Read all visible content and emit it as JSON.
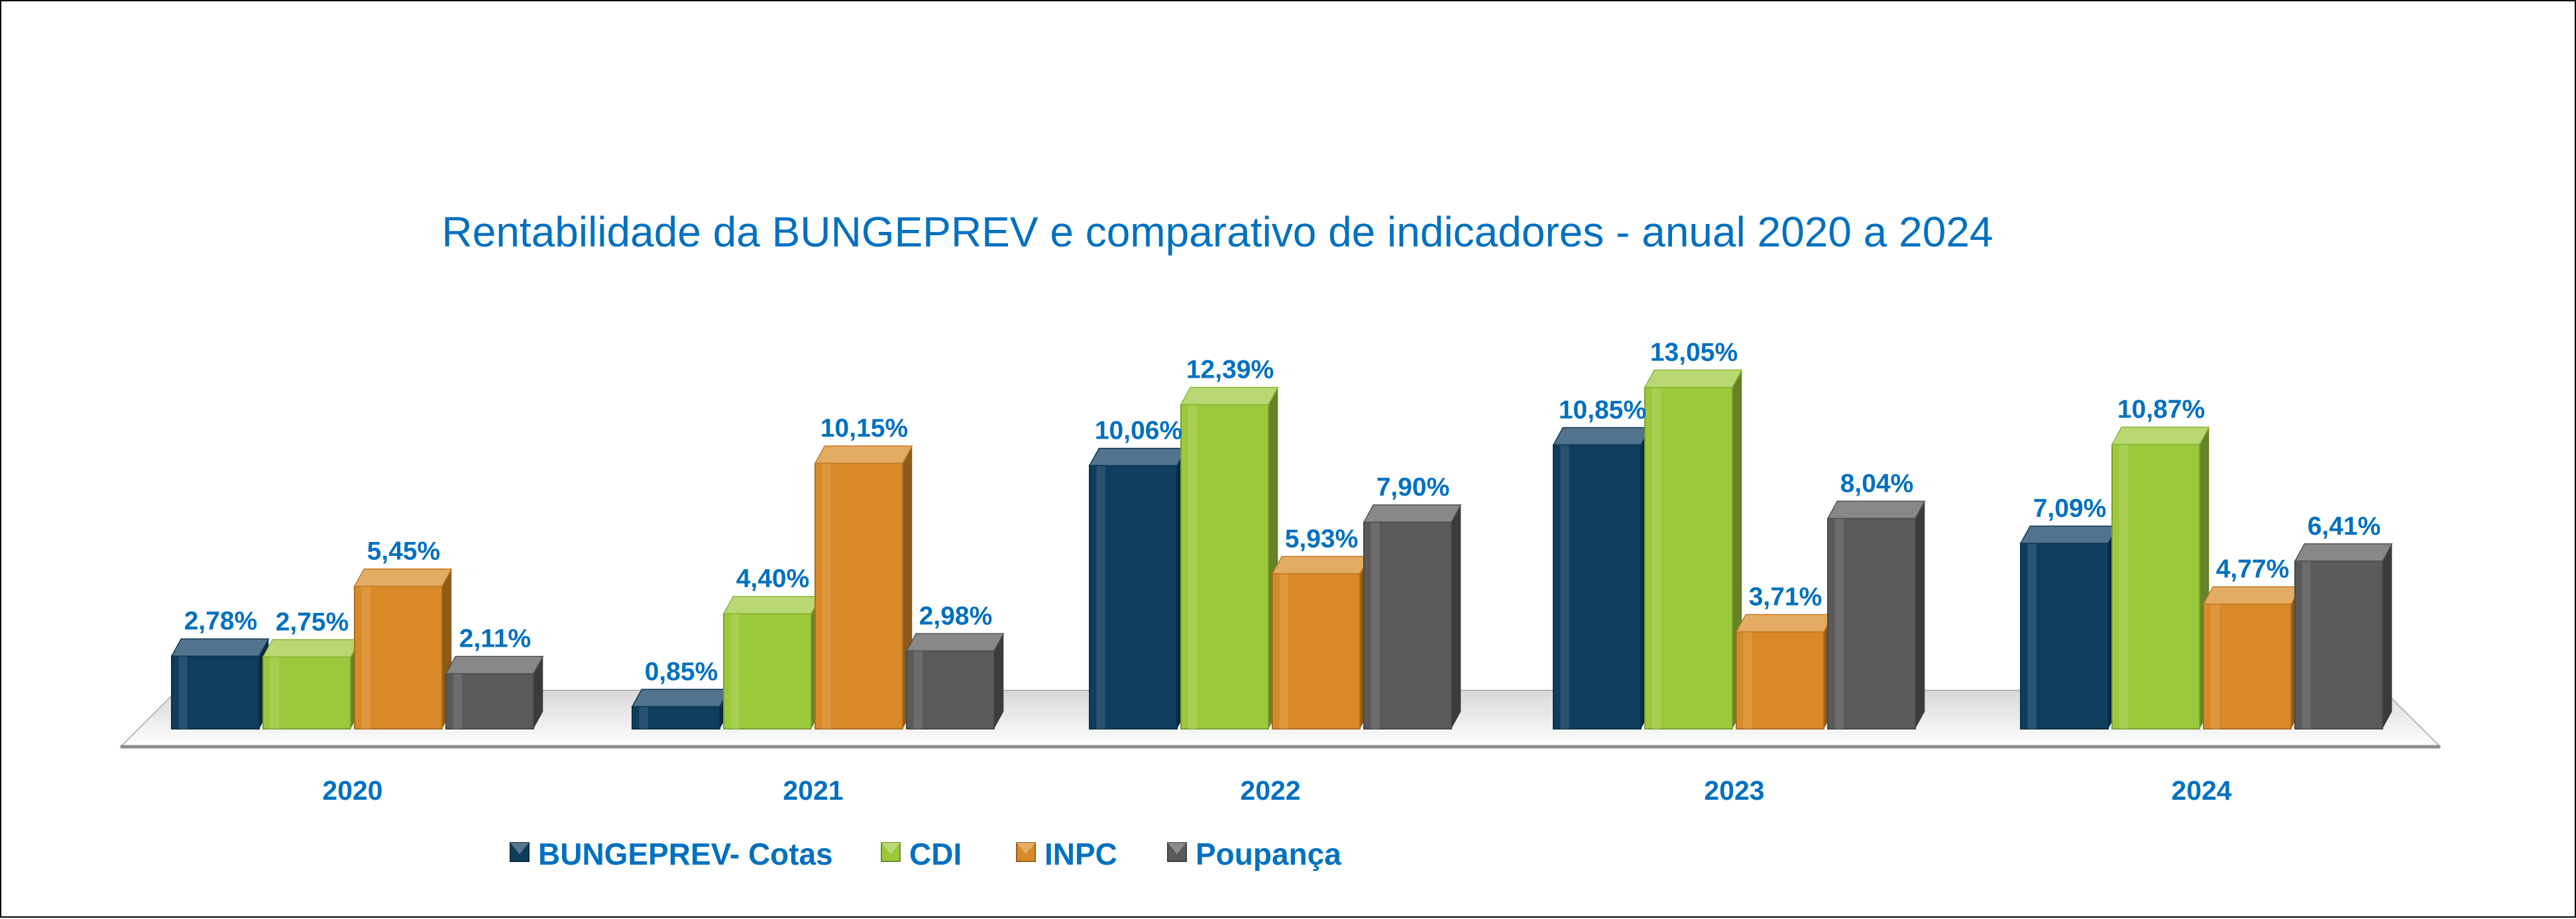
{
  "chart_data": {
    "type": "bar",
    "title": "Rentabilidade da BUNGEPREV e comparativo de indicadores - anual 2020 a 2024",
    "categories": [
      "2020",
      "2021",
      "2022",
      "2023",
      "2024"
    ],
    "series": [
      {
        "name": "BUNGEPREV- Cotas",
        "values": [
          2.78,
          0.85,
          10.06,
          10.85,
          7.09
        ],
        "labels": [
          "2,78%",
          "0,85%",
          "10,06%",
          "10,85%",
          "7,09%"
        ],
        "color": "#0E3D5E"
      },
      {
        "name": "CDI",
        "values": [
          2.75,
          4.4,
          12.39,
          13.05,
          10.87
        ],
        "labels": [
          "2,75%",
          "4,40%",
          "12,39%",
          "13,05%",
          "10,87%"
        ],
        "color": "#9BC93B"
      },
      {
        "name": "INPC",
        "values": [
          5.45,
          10.15,
          5.93,
          3.71,
          4.77
        ],
        "labels": [
          "5,45%",
          "10,15%",
          "5,93%",
          "3,71%",
          "4,77%"
        ],
        "color": "#D98A28"
      },
      {
        "name": "Poupança",
        "values": [
          2.11,
          2.98,
          7.9,
          8.04,
          6.41
        ],
        "labels": [
          "2,11%",
          "2,98%",
          "7,90%",
          "8,04%",
          "6,41%"
        ],
        "color": "#5A5A5A"
      }
    ],
    "legend_position": "bottom",
    "grid": false,
    "style": "3d-column"
  }
}
